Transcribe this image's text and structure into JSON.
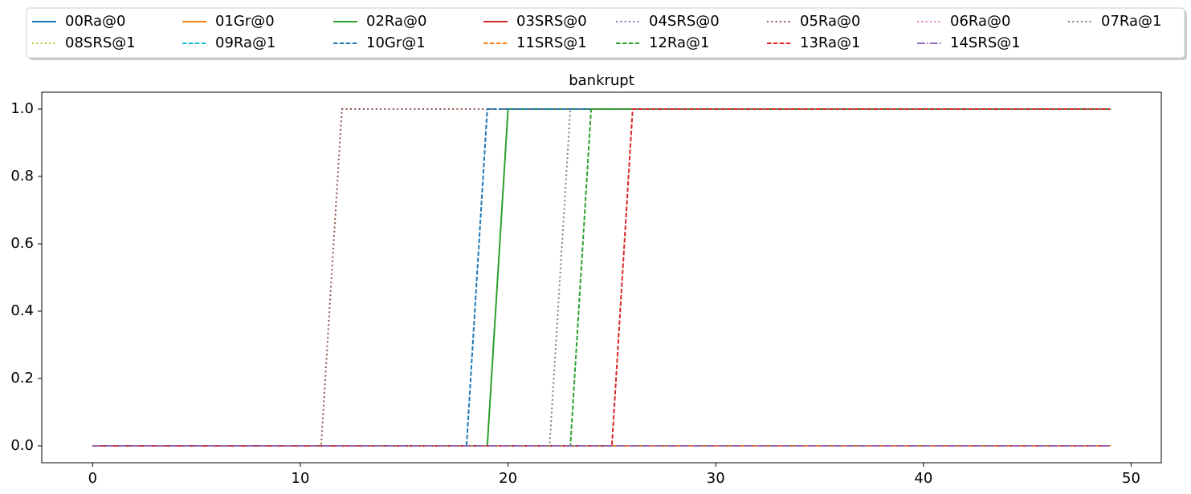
{
  "chart_data": {
    "type": "line",
    "title": "bankrupt",
    "x": [
      0,
      1,
      2,
      3,
      4,
      5,
      6,
      7,
      8,
      9,
      10,
      11,
      12,
      13,
      14,
      15,
      16,
      17,
      18,
      19,
      20,
      21,
      22,
      23,
      24,
      25,
      26,
      27,
      28,
      29,
      30,
      31,
      32,
      33,
      34,
      35,
      36,
      37,
      38,
      39,
      40,
      41,
      42,
      43,
      44,
      45,
      46,
      47,
      48,
      49
    ],
    "xlim": [
      -2.45,
      51.45
    ],
    "xticks": [
      0,
      10,
      20,
      30,
      40,
      50
    ],
    "ylim": [
      -0.05,
      1.05
    ],
    "yticks": [
      {
        "value": 0,
        "label": "0.0"
      },
      {
        "value": 0.2,
        "label": "0.2"
      },
      {
        "value": 0.4,
        "label": "0.4"
      },
      {
        "value": 0.6,
        "label": "0.6"
      },
      {
        "value": 0.8,
        "label": "0.8"
      },
      {
        "value": 1,
        "label": "1.0"
      }
    ],
    "legend_columns": 8,
    "series": [
      {
        "name": "00Ra@0",
        "color": "#1f77b4",
        "dash": "solid",
        "values": [
          0,
          0,
          0,
          0,
          0,
          0,
          0,
          0,
          0,
          0,
          0,
          0,
          0,
          0,
          0,
          0,
          0,
          0,
          0,
          0,
          0,
          0,
          0,
          0,
          0,
          0,
          0,
          0,
          0,
          0,
          0,
          0,
          0,
          0,
          0,
          0,
          0,
          0,
          0,
          0,
          0,
          0,
          0,
          0,
          0,
          0,
          0,
          0,
          0,
          0
        ]
      },
      {
        "name": "01Gr@0",
        "color": "#ff7f0e",
        "dash": "solid",
        "values": [
          0,
          0,
          0,
          0,
          0,
          0,
          0,
          0,
          0,
          0,
          0,
          0,
          0,
          0,
          0,
          0,
          0,
          0,
          0,
          0,
          0,
          0,
          0,
          0,
          0,
          0,
          0,
          0,
          0,
          0,
          0,
          0,
          0,
          0,
          0,
          0,
          0,
          0,
          0,
          0,
          0,
          0,
          0,
          0,
          0,
          0,
          0,
          0,
          0,
          0
        ]
      },
      {
        "name": "02Ra@0",
        "color": "#2ca02c",
        "dash": "solid",
        "values": [
          0,
          0,
          0,
          0,
          0,
          0,
          0,
          0,
          0,
          0,
          0,
          0,
          0,
          0,
          0,
          0,
          0,
          0,
          0,
          0,
          1,
          1,
          1,
          1,
          1,
          1,
          1,
          1,
          1,
          1,
          1,
          1,
          1,
          1,
          1,
          1,
          1,
          1,
          1,
          1,
          1,
          1,
          1,
          1,
          1,
          1,
          1,
          1,
          1,
          1
        ]
      },
      {
        "name": "03SRS@0",
        "color": "#d62728",
        "dash": "solid",
        "values": [
          0,
          0,
          0,
          0,
          0,
          0,
          0,
          0,
          0,
          0,
          0,
          0,
          0,
          0,
          0,
          0,
          0,
          0,
          0,
          0,
          0,
          0,
          0,
          0,
          0,
          0,
          0,
          0,
          0,
          0,
          0,
          0,
          0,
          0,
          0,
          0,
          0,
          0,
          0,
          0,
          0,
          0,
          0,
          0,
          0,
          0,
          0,
          0,
          0,
          0
        ]
      },
      {
        "name": "04SRS@0",
        "color": "#9467bd",
        "dash": "dotted",
        "values": [
          0,
          0,
          0,
          0,
          0,
          0,
          0,
          0,
          0,
          0,
          0,
          0,
          0,
          0,
          0,
          0,
          0,
          0,
          0,
          0,
          0,
          0,
          0,
          0,
          0,
          0,
          0,
          0,
          0,
          0,
          0,
          0,
          0,
          0,
          0,
          0,
          0,
          0,
          0,
          0,
          0,
          0,
          0,
          0,
          0,
          0,
          0,
          0,
          0,
          0
        ]
      },
      {
        "name": "05Ra@0",
        "color": "#8c564b",
        "dash": "dotted",
        "values": [
          0,
          0,
          0,
          0,
          0,
          0,
          0,
          0,
          0,
          0,
          0,
          0,
          1,
          1,
          1,
          1,
          1,
          1,
          1,
          1,
          1,
          1,
          1,
          1,
          1,
          1,
          1,
          1,
          1,
          1,
          1,
          1,
          1,
          1,
          1,
          1,
          1,
          1,
          1,
          1,
          1,
          1,
          1,
          1,
          1,
          1,
          1,
          1,
          1,
          1
        ]
      },
      {
        "name": "06Ra@0",
        "color": "#e377c2",
        "dash": "dotted",
        "values": [
          0,
          0,
          0,
          0,
          0,
          0,
          0,
          0,
          0,
          0,
          0,
          0,
          0,
          0,
          0,
          0,
          0,
          0,
          0,
          0,
          0,
          0,
          0,
          0,
          0,
          0,
          0,
          0,
          0,
          0,
          0,
          0,
          0,
          0,
          0,
          0,
          0,
          0,
          0,
          0,
          0,
          0,
          0,
          0,
          0,
          0,
          0,
          0,
          0,
          0
        ]
      },
      {
        "name": "07Ra@1",
        "color": "#7f7f7f",
        "dash": "dotted",
        "values": [
          0,
          0,
          0,
          0,
          0,
          0,
          0,
          0,
          0,
          0,
          0,
          0,
          0,
          0,
          0,
          0,
          0,
          0,
          0,
          0,
          0,
          0,
          0,
          1,
          1,
          1,
          1,
          1,
          1,
          1,
          1,
          1,
          1,
          1,
          1,
          1,
          1,
          1,
          1,
          1,
          1,
          1,
          1,
          1,
          1,
          1,
          1,
          1,
          1,
          1
        ]
      },
      {
        "name": "08SRS@1",
        "color": "#bcbd22",
        "dash": "dotted",
        "values": [
          0,
          0,
          0,
          0,
          0,
          0,
          0,
          0,
          0,
          0,
          0,
          0,
          0,
          0,
          0,
          0,
          0,
          0,
          0,
          0,
          0,
          0,
          0,
          0,
          0,
          0,
          0,
          0,
          0,
          0,
          0,
          0,
          0,
          0,
          0,
          0,
          0,
          0,
          0,
          0,
          0,
          0,
          0,
          0,
          0,
          0,
          0,
          0,
          0,
          0
        ]
      },
      {
        "name": "09Ra@1",
        "color": "#17becf",
        "dash": "dashed",
        "values": [
          0,
          0,
          0,
          0,
          0,
          0,
          0,
          0,
          0,
          0,
          0,
          0,
          0,
          0,
          0,
          0,
          0,
          0,
          0,
          0,
          0,
          0,
          0,
          0,
          0,
          0,
          0,
          0,
          0,
          0,
          0,
          0,
          0,
          0,
          0,
          0,
          0,
          0,
          0,
          0,
          0,
          0,
          0,
          0,
          0,
          0,
          0,
          0,
          0,
          0
        ]
      },
      {
        "name": "10Gr@1",
        "color": "#1f77b4",
        "dash": "dashed",
        "values": [
          0,
          0,
          0,
          0,
          0,
          0,
          0,
          0,
          0,
          0,
          0,
          0,
          0,
          0,
          0,
          0,
          0,
          0,
          0,
          1,
          1,
          1,
          1,
          1,
          1,
          1,
          1,
          1,
          1,
          1,
          1,
          1,
          1,
          1,
          1,
          1,
          1,
          1,
          1,
          1,
          1,
          1,
          1,
          1,
          1,
          1,
          1,
          1,
          1,
          1
        ]
      },
      {
        "name": "11SRS@1",
        "color": "#ff7f0e",
        "dash": "dashed",
        "values": [
          0,
          0,
          0,
          0,
          0,
          0,
          0,
          0,
          0,
          0,
          0,
          0,
          0,
          0,
          0,
          0,
          0,
          0,
          0,
          0,
          0,
          0,
          0,
          0,
          0,
          0,
          0,
          0,
          0,
          0,
          0,
          0,
          0,
          0,
          0,
          0,
          0,
          0,
          0,
          0,
          0,
          0,
          0,
          0,
          0,
          0,
          0,
          0,
          0,
          0
        ]
      },
      {
        "name": "12Ra@1",
        "color": "#2ca02c",
        "dash": "dashed",
        "values": [
          0,
          0,
          0,
          0,
          0,
          0,
          0,
          0,
          0,
          0,
          0,
          0,
          0,
          0,
          0,
          0,
          0,
          0,
          0,
          0,
          0,
          0,
          0,
          0,
          1,
          1,
          1,
          1,
          1,
          1,
          1,
          1,
          1,
          1,
          1,
          1,
          1,
          1,
          1,
          1,
          1,
          1,
          1,
          1,
          1,
          1,
          1,
          1,
          1,
          1
        ]
      },
      {
        "name": "13Ra@1",
        "color": "#d62728",
        "dash": "dashed",
        "values": [
          0,
          0,
          0,
          0,
          0,
          0,
          0,
          0,
          0,
          0,
          0,
          0,
          0,
          0,
          0,
          0,
          0,
          0,
          0,
          0,
          0,
          0,
          0,
          0,
          0,
          0,
          1,
          1,
          1,
          1,
          1,
          1,
          1,
          1,
          1,
          1,
          1,
          1,
          1,
          1,
          1,
          1,
          1,
          1,
          1,
          1,
          1,
          1,
          1,
          1
        ]
      },
      {
        "name": "14SRS@1",
        "color": "#9467bd",
        "dash": "dashdot",
        "values": [
          0,
          0,
          0,
          0,
          0,
          0,
          0,
          0,
          0,
          0,
          0,
          0,
          0,
          0,
          0,
          0,
          0,
          0,
          0,
          0,
          0,
          0,
          0,
          0,
          0,
          0,
          0,
          0,
          0,
          0,
          0,
          0,
          0,
          0,
          0,
          0,
          0,
          0,
          0,
          0,
          0,
          0,
          0,
          0,
          0,
          0,
          0,
          0,
          0,
          0
        ]
      }
    ]
  }
}
